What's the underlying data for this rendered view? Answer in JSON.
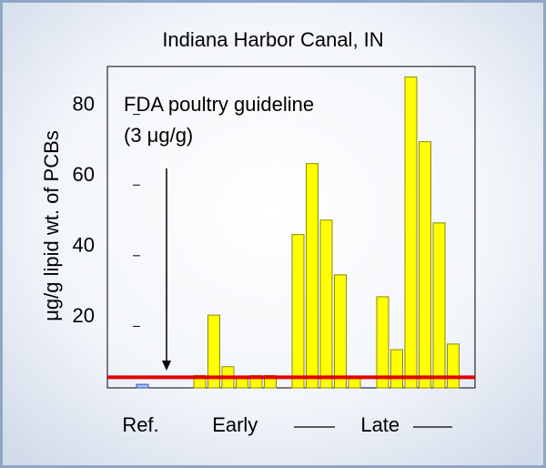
{
  "chart_data": {
    "type": "bar",
    "title": "Indiana Harbor Canal, IN",
    "y_label": "μg/g lipid wt. of PCBs",
    "groups": [
      {
        "label": "Ref.",
        "color": "#a8c4f0",
        "values": [
          1
        ]
      },
      {
        "label": "Early",
        "color": "#ffff00",
        "values": [
          3.5,
          20.6,
          6,
          2.6,
          3.5,
          3.5
        ]
      },
      {
        "label": "Late",
        "color": "#ffff00",
        "values": [
          43.4,
          63.5,
          47.5,
          32,
          2.6,
          25.8,
          10.8,
          88,
          69.7,
          46.7,
          12.4
        ]
      }
    ],
    "ylim": [
      0,
      91
    ],
    "yticks": [
      20,
      40,
      60,
      80
    ],
    "reference_line": {
      "value": 3,
      "color": "#e00000"
    },
    "annotation": [
      "FDA poultry guideline",
      "(3 μg/g)"
    ]
  }
}
